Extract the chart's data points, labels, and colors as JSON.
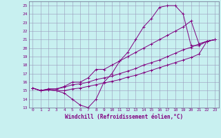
{
  "xlabel": "Windchill (Refroidissement éolien,°C)",
  "ylabel": "",
  "xlim": [
    -0.5,
    23.5
  ],
  "ylim": [
    13,
    25.5
  ],
  "yticks": [
    13,
    14,
    15,
    16,
    17,
    18,
    19,
    20,
    21,
    22,
    23,
    24,
    25
  ],
  "xticks": [
    0,
    1,
    2,
    3,
    4,
    5,
    6,
    7,
    8,
    9,
    10,
    11,
    12,
    13,
    14,
    15,
    16,
    17,
    18,
    19,
    20,
    21,
    22,
    23
  ],
  "line_color": "#800080",
  "bg_color": "#c8f0f0",
  "grid_color": "#9999bb",
  "lines": [
    {
      "x": [
        0,
        1,
        2,
        3,
        4,
        5,
        6,
        7,
        8,
        9,
        10,
        11,
        12,
        13,
        14,
        15,
        16,
        17,
        18,
        19,
        20,
        21,
        22,
        23
      ],
      "y": [
        15.3,
        15.0,
        15.1,
        15.0,
        14.7,
        14.0,
        13.3,
        13.0,
        14.0,
        16.0,
        17.0,
        18.5,
        19.5,
        21.0,
        22.5,
        23.5,
        24.8,
        25.0,
        25.0,
        24.0,
        20.3,
        20.3,
        20.8,
        21.0
      ]
    },
    {
      "x": [
        0,
        1,
        2,
        3,
        4,
        5,
        6,
        7,
        8,
        9,
        10,
        11,
        12,
        13,
        14,
        15,
        16,
        17,
        18,
        19,
        20,
        21,
        22,
        23
      ],
      "y": [
        15.3,
        15.0,
        15.2,
        15.2,
        15.5,
        16.0,
        16.0,
        16.5,
        17.5,
        17.5,
        18.0,
        18.5,
        19.0,
        19.5,
        20.0,
        20.5,
        21.0,
        21.5,
        22.0,
        22.5,
        23.2,
        20.5,
        20.8,
        21.0
      ]
    },
    {
      "x": [
        0,
        1,
        2,
        3,
        4,
        5,
        6,
        7,
        8,
        9,
        10,
        11,
        12,
        13,
        14,
        15,
        16,
        17,
        18,
        19,
        20,
        21,
        22,
        23
      ],
      "y": [
        15.3,
        15.0,
        15.2,
        15.2,
        15.4,
        15.7,
        15.8,
        16.0,
        16.3,
        16.5,
        16.7,
        17.0,
        17.3,
        17.6,
        18.0,
        18.3,
        18.6,
        19.0,
        19.4,
        19.8,
        20.1,
        20.5,
        20.8,
        21.0
      ]
    },
    {
      "x": [
        0,
        1,
        2,
        3,
        4,
        5,
        6,
        7,
        8,
        9,
        10,
        11,
        12,
        13,
        14,
        15,
        16,
        17,
        18,
        19,
        20,
        21,
        22,
        23
      ],
      "y": [
        15.3,
        15.0,
        15.1,
        15.0,
        15.0,
        15.2,
        15.3,
        15.5,
        15.7,
        15.9,
        16.1,
        16.3,
        16.6,
        16.8,
        17.1,
        17.4,
        17.7,
        18.0,
        18.3,
        18.6,
        18.9,
        19.3,
        20.8,
        21.0
      ]
    }
  ]
}
